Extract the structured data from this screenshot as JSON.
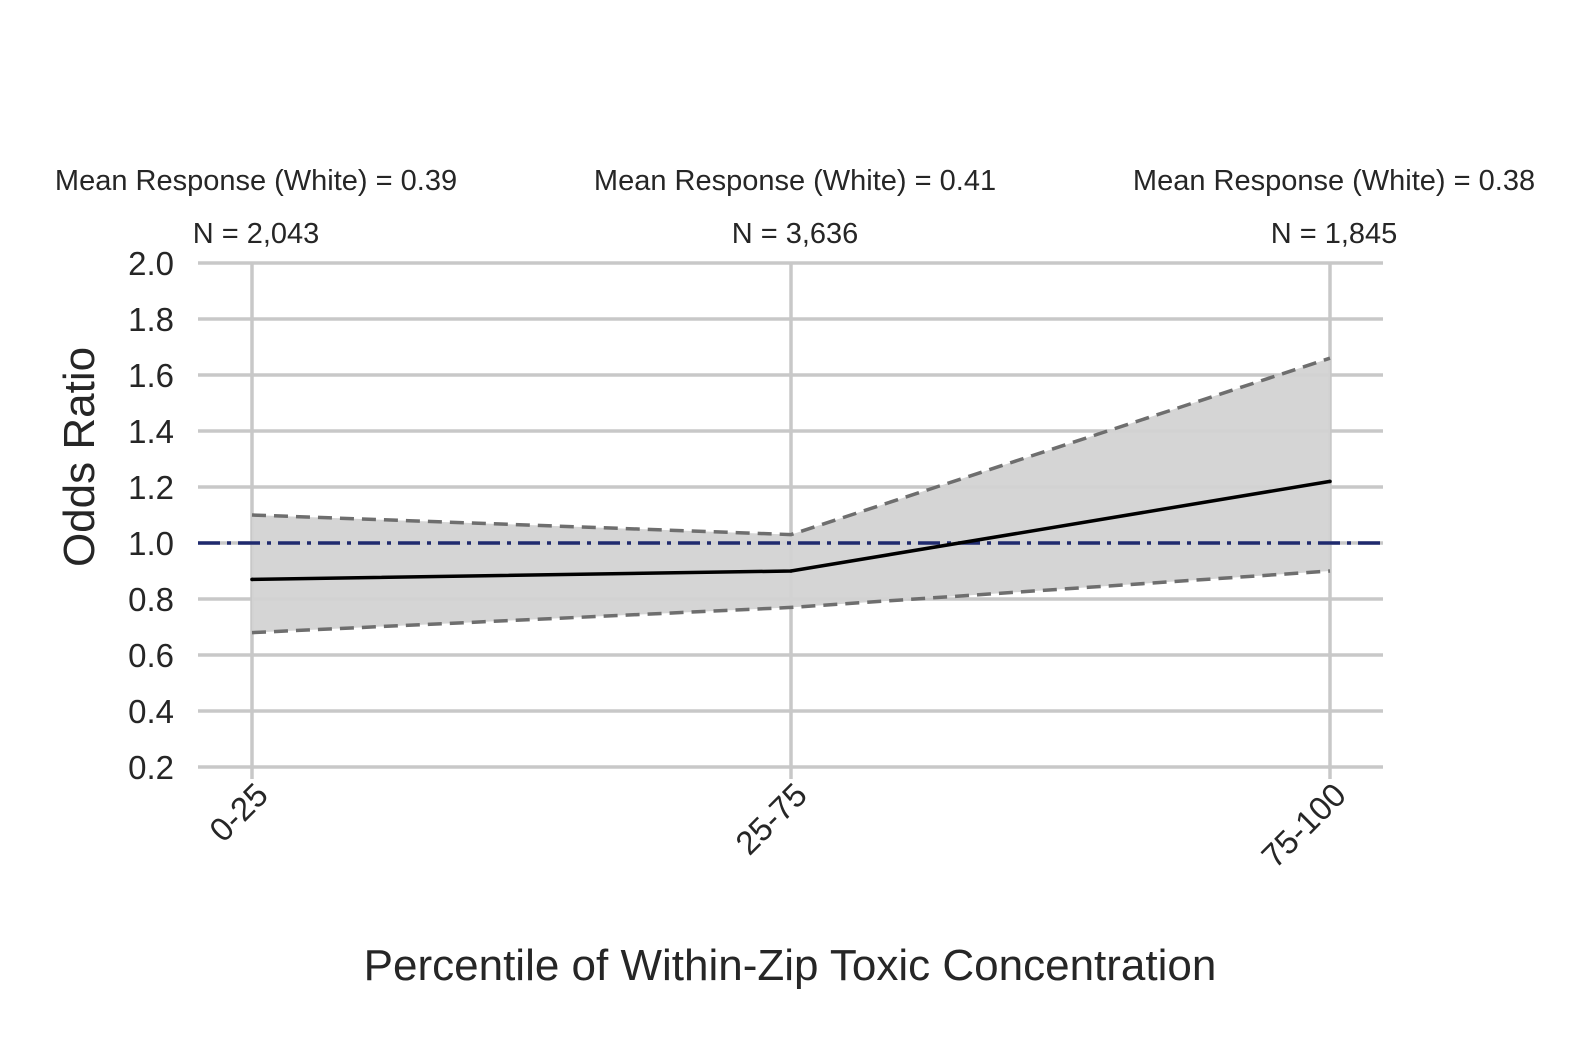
{
  "chart_data": {
    "type": "line",
    "title": "",
    "xlabel": "Percentile of Within-Zip Toxic Concentration",
    "ylabel": "Odds Ratio",
    "categories": [
      "0-25",
      "25-75",
      "75-100"
    ],
    "ylim": [
      0.2,
      2.0
    ],
    "yticks": [
      "0.2",
      "0.4",
      "0.6",
      "0.8",
      "1.0",
      "1.2",
      "1.4",
      "1.6",
      "1.8",
      "2.0"
    ],
    "grid": true,
    "reference_line": {
      "y": 1.0,
      "style": "dash-dot",
      "color": "#1f2a6e"
    },
    "series": [
      {
        "values": [
          0.87,
          0.9,
          1.22
        ],
        "color": "#000000",
        "style": "solid"
      }
    ],
    "confidence_band": {
      "lower": [
        0.68,
        0.77,
        0.9
      ],
      "upper": [
        1.1,
        1.03,
        1.66
      ],
      "fill": "#d3d3d3",
      "edge_color": "#6e6e6e",
      "edge_style": "dashed"
    },
    "annotations": [
      {
        "mean_response": "Mean Response (White) = 0.39",
        "n": "N = 2,043"
      },
      {
        "mean_response": "Mean Response (White) = 0.41",
        "n": "N = 3,636"
      },
      {
        "mean_response": "Mean Response (White) = 0.38",
        "n": "N = 1,845"
      }
    ]
  }
}
